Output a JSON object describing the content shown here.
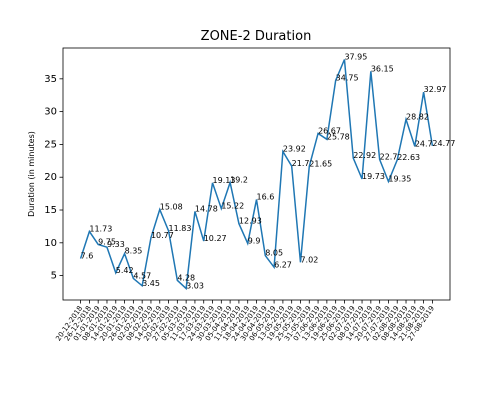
{
  "chart_data": {
    "type": "line",
    "title": "ZONE-2 Duration",
    "y_label": "Duration (in minutes)",
    "categories": [
      "20-12-2018",
      "26-12-2018",
      "01-01-2019",
      "08-01-2019",
      "14-01-2019",
      "20-01-2019",
      "26-01-2019",
      "02-02-2019",
      "08-02-2019",
      "14-02-2019",
      "20-02-2019",
      "27-02-2019",
      "05-03-2019",
      "11-03-2019",
      "17-03-2019",
      "24-03-2019",
      "30-03-2019",
      "05-04-2019",
      "11-04-2019",
      "18-04-2019",
      "24-04-2019",
      "30-04-2019",
      "06-05-2019",
      "13-05-2019",
      "19-05-2019",
      "25-05-2019",
      "31-05-2019",
      "07-06-2019",
      "13-06-2019",
      "19-06-2019",
      "25-06-2019",
      "02-07-2019",
      "08-07-2019",
      "14-07-2019",
      "20-07-2019",
      "27-07-2019",
      "02-08-2019",
      "08-08-2019",
      "14-08-2019",
      "21-08-2019",
      "27-08-2019"
    ],
    "values": [
      7.6,
      11.73,
      9.75,
      9.33,
      5.42,
      8.35,
      4.57,
      3.45,
      10.77,
      15.08,
      11.83,
      4.28,
      3.03,
      14.78,
      10.27,
      19.13,
      15.22,
      19.2,
      12.93,
      9.9,
      16.6,
      8.05,
      6.27,
      23.92,
      21.7,
      7.02,
      21.65,
      26.67,
      25.78,
      34.75,
      37.95,
      22.92,
      19.73,
      36.15,
      22.7,
      19.35,
      22.63,
      28.82,
      24.7,
      32.97,
      24.77
    ],
    "color": "#1f77b4",
    "ylim": [
      1.28,
      39.7
    ],
    "yticks": [
      5,
      10,
      15,
      20,
      25,
      30,
      35
    ]
  }
}
